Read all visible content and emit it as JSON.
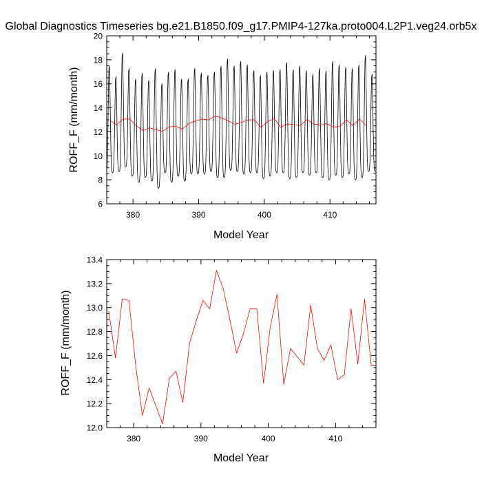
{
  "title": "Global Diagnostics Timeseries bg.e21.B1850.f09_g17.PMIP4-127ka.proto004.L2P1.veg24.orb5x",
  "colors": {
    "monthly": "#000000",
    "annual": "#ff0000"
  },
  "chart_data": [
    {
      "type": "line",
      "xlabel": "Model Year",
      "ylabel": "ROFF_F (mm/month)",
      "xlim": [
        376,
        417
      ],
      "ylim": [
        6,
        20
      ],
      "xticks": [
        380,
        390,
        400,
        410
      ],
      "yticks": [
        6,
        8,
        10,
        12,
        14,
        16,
        18,
        20
      ],
      "series": [
        {
          "style": "monthly",
          "start_year": 376,
          "monthly_amplitude_peaks": [
            17.7,
            16.8,
            18.8,
            17.5,
            16.6,
            17.1,
            16.5,
            17.5,
            16.2,
            17.2,
            17.4,
            16.6,
            16.6,
            17.5,
            17.1,
            16.9,
            17.2,
            17.7,
            18.3,
            17.7,
            18.1,
            17.8,
            17.3,
            16.9,
            17.2,
            17.3,
            17.4,
            18.0,
            17.4,
            17.7,
            17.3,
            17.0,
            17.5,
            17.3,
            18.1,
            17.8,
            17.6,
            17.5,
            17.8,
            18.6,
            17.0
          ],
          "monthly_amplitude_troughs": [
            8.6,
            8.6,
            8.7,
            9.1,
            8.3,
            7.8,
            8.2,
            7.9,
            7.3,
            8.6,
            7.8,
            8.3,
            7.9,
            8.5,
            8.5,
            8.5,
            8.7,
            8.2,
            8.2,
            8.8,
            8.7,
            8.5,
            8.6,
            8.6,
            8.1,
            8.3,
            8.6,
            8.6,
            8.1,
            8.2,
            8.6,
            8.4,
            8.6,
            8.2,
            8.0,
            8.4,
            8.2,
            8.5,
            8.0,
            8.2,
            8.7
          ]
        },
        {
          "style": "annual",
          "x": [
            376.5,
            377.5,
            378.5,
            379.5,
            380.5,
            381.5,
            382.5,
            383.5,
            384.5,
            385.5,
            386.5,
            387.5,
            388.5,
            389.5,
            390.5,
            391.5,
            392.5,
            393.5,
            394.5,
            395.5,
            396.5,
            397.5,
            398.5,
            399.5,
            400.5,
            401.5,
            402.5,
            403.5,
            404.5,
            405.5,
            406.5,
            407.5,
            408.5,
            409.5,
            410.5,
            411.5,
            412.5,
            413.5,
            414.5,
            415.5
          ],
          "values": [
            12.97,
            12.58,
            13.07,
            13.06,
            12.52,
            12.1,
            12.33,
            12.18,
            12.03,
            12.41,
            12.47,
            12.21,
            12.7,
            12.89,
            13.06,
            12.99,
            13.31,
            13.16,
            12.9,
            12.62,
            12.78,
            12.99,
            12.99,
            12.37,
            12.84,
            13.11,
            12.36,
            12.66,
            12.59,
            12.52,
            13.02,
            12.66,
            12.56,
            12.69,
            12.4,
            12.44,
            12.99,
            12.53,
            13.07,
            12.52
          ]
        }
      ]
    },
    {
      "type": "line",
      "xlabel": "Model Year",
      "ylabel": "ROFF_F (mm/month)",
      "xlim": [
        376,
        416
      ],
      "ylim": [
        12.0,
        13.4
      ],
      "xticks": [
        380,
        390,
        400,
        410
      ],
      "yticks": [
        12.0,
        12.2,
        12.4,
        12.6,
        12.8,
        13.0,
        13.2,
        13.4
      ],
      "ytick_labels": [
        "12.0",
        "12.2",
        "12.4",
        "12.6",
        "12.8",
        "13.0",
        "13.2",
        "13.4"
      ],
      "series": [
        {
          "style": "annual",
          "x": [
            376.3,
            377.3,
            378.3,
            379.3,
            380.3,
            381.3,
            382.3,
            383.3,
            384.3,
            385.3,
            386.3,
            387.3,
            388.3,
            389.3,
            390.3,
            391.3,
            392.3,
            393.3,
            394.3,
            395.3,
            396.3,
            397.3,
            398.3,
            399.3,
            400.3,
            401.3,
            402.3,
            403.3,
            404.3,
            405.3,
            406.3,
            407.3,
            408.3,
            409.3,
            410.3,
            411.3,
            412.3,
            413.3,
            414.3,
            415.3,
            416.0
          ],
          "values": [
            12.97,
            12.58,
            13.07,
            13.06,
            12.52,
            12.1,
            12.33,
            12.18,
            12.03,
            12.41,
            12.47,
            12.21,
            12.7,
            12.89,
            13.06,
            12.99,
            13.31,
            13.16,
            12.9,
            12.62,
            12.78,
            12.99,
            12.99,
            12.37,
            12.84,
            13.11,
            12.36,
            12.66,
            12.59,
            12.52,
            13.02,
            12.66,
            12.56,
            12.69,
            12.4,
            12.44,
            12.99,
            12.53,
            13.07,
            12.52,
            12.52
          ]
        }
      ]
    }
  ]
}
